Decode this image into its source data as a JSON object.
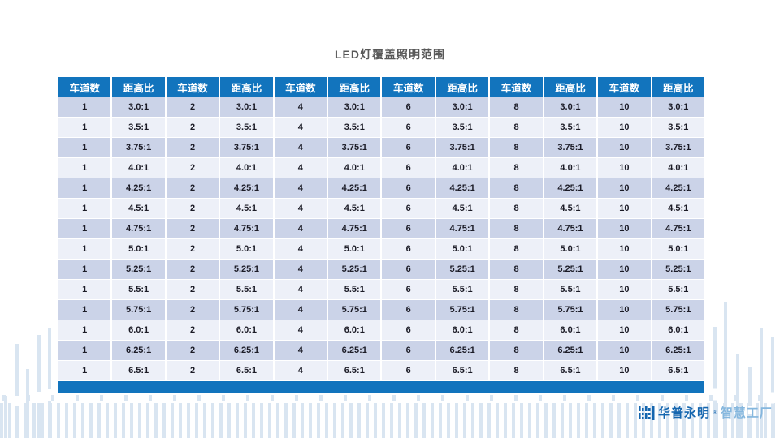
{
  "slide": {
    "title": "LED灯覆盖照明范围"
  },
  "table": {
    "column_headers": [
      "车道数",
      "距高比",
      "车道数",
      "距高比",
      "车道数",
      "距高比",
      "车道数",
      "距高比",
      "车道数",
      "距高比",
      "车道数",
      "距高比"
    ],
    "lane_counts": [
      "1",
      "2",
      "4",
      "6",
      "8",
      "10"
    ],
    "ratio_rows": [
      "3.0:1",
      "3.5:1",
      "3.75:1",
      "4.0:1",
      "4.25:1",
      "4.5:1",
      "4.75:1",
      "5.0:1",
      "5.25:1",
      "5.5:1",
      "5.75:1",
      "6.0:1",
      "6.25:1",
      "6.5:1"
    ]
  },
  "brand": {
    "name": "华普永明",
    "mark": "®",
    "suffix": "智慧工厂"
  },
  "colors": {
    "header_blue": "#1274BD",
    "row_dark": "#CBD3E8",
    "row_light": "#EDF0F8",
    "deco_bar": "#D9E5F1",
    "brand_primary": "#1566AF",
    "brand_secondary": "#85B7DE",
    "title_gray": "#595959"
  }
}
